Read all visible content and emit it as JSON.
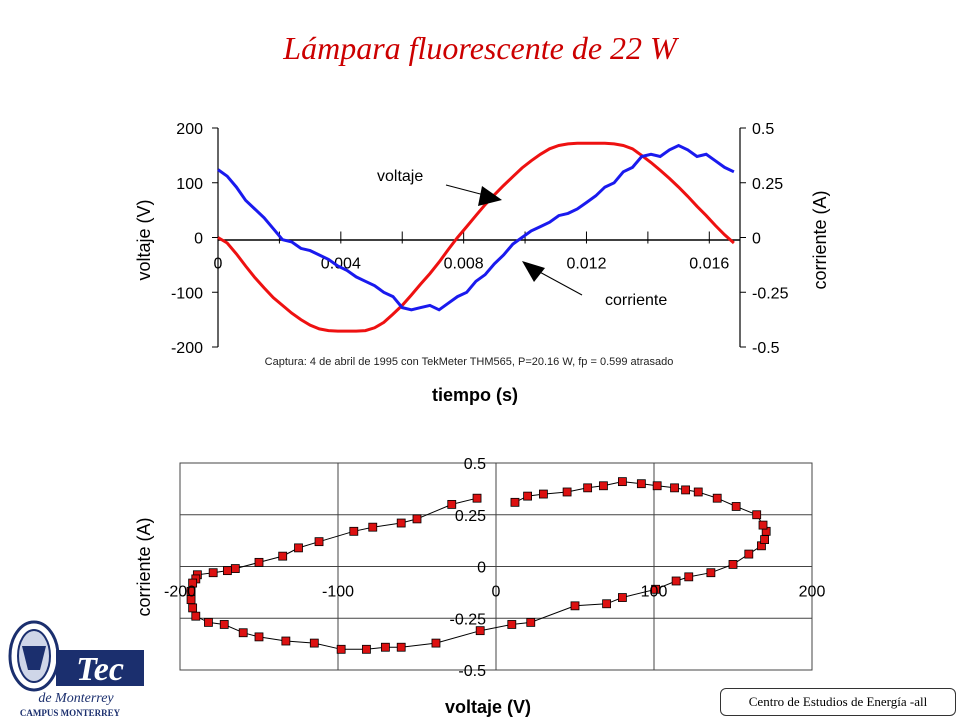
{
  "title": "Lámpara fluorescente de 22 W",
  "footer": "Centro de Estudios de Energía -all",
  "logo": {
    "icon": "tec-de-monterrey-logo",
    "text_main": "Tec",
    "text_sub": "de Monterrey",
    "text_campus": "CAMPUS MONTERREY"
  },
  "chart_data": [
    {
      "type": "line",
      "title": "",
      "caption": "Captura: 4 de abril de 1995 con TekMeter THM565, P=20.16 W, fp = 0.599 atrasado",
      "xlabel": "tiempo (s)",
      "ylabel_left": "voltaje (V)",
      "ylabel_right": "corriente (A)",
      "xlim": [
        0,
        0.017
      ],
      "ylim_left": [
        -200,
        200
      ],
      "ylim_right": [
        -0.5,
        0.5
      ],
      "x_ticks": [
        "0",
        "0.004",
        "0.008",
        "0.012",
        "0.016"
      ],
      "y_ticks_left": [
        "200",
        "100",
        "0",
        "-100",
        "-200"
      ],
      "y_ticks_right": [
        "0.5",
        "0.25",
        "0",
        "-0.25",
        "-0.5"
      ],
      "annotations": [
        "voltaje",
        "corriente"
      ],
      "series": [
        {
          "name": "voltaje",
          "axis": "left",
          "color": "#ee1111",
          "x": [
            0,
            0.0003,
            0.0006,
            0.0009,
            0.0012,
            0.0015,
            0.0018,
            0.0021,
            0.0024,
            0.0027,
            0.003,
            0.0033,
            0.0036,
            0.0039,
            0.0042,
            0.0045,
            0.0048,
            0.0051,
            0.0054,
            0.0057,
            0.006,
            0.0063,
            0.0066,
            0.0069,
            0.0072,
            0.0075,
            0.0078,
            0.0081,
            0.0084,
            0.0087,
            0.009,
            0.0093,
            0.0096,
            0.0099,
            0.0102,
            0.0105,
            0.0108,
            0.0111,
            0.0114,
            0.0117,
            0.012,
            0.0123,
            0.0126,
            0.0129,
            0.0132,
            0.0135,
            0.0138,
            0.0141,
            0.0144,
            0.0147,
            0.015,
            0.0153,
            0.0156,
            0.0159,
            0.0162,
            0.0165,
            0.0168
          ],
          "values": [
            0,
            -10,
            -30,
            -52,
            -73,
            -92,
            -110,
            -124,
            -138,
            -150,
            -160,
            -167,
            -170,
            -171,
            -171,
            -171,
            -170,
            -165,
            -155,
            -140,
            -124,
            -105,
            -85,
            -66,
            -45,
            -22,
            0,
            20,
            40,
            60,
            78,
            95,
            111,
            127,
            140,
            152,
            162,
            168,
            171,
            172,
            172,
            172,
            172,
            171,
            168,
            162,
            150,
            137,
            123,
            108,
            92,
            75,
            57,
            40,
            22,
            5,
            -10
          ]
        },
        {
          "name": "corriente",
          "axis": "right",
          "color": "#1a1aee",
          "x": [
            0,
            0.0003,
            0.0006,
            0.0009,
            0.0012,
            0.0015,
            0.0018,
            0.0021,
            0.0024,
            0.0027,
            0.003,
            0.0033,
            0.0036,
            0.0039,
            0.0042,
            0.0045,
            0.0048,
            0.0051,
            0.0054,
            0.0057,
            0.006,
            0.0063,
            0.0066,
            0.0069,
            0.0072,
            0.0075,
            0.0078,
            0.0081,
            0.0084,
            0.0087,
            0.009,
            0.0093,
            0.0096,
            0.0099,
            0.0102,
            0.0105,
            0.0108,
            0.0111,
            0.0114,
            0.0117,
            0.012,
            0.0123,
            0.0126,
            0.0129,
            0.0132,
            0.0135,
            0.0138,
            0.0141,
            0.0144,
            0.0147,
            0.015,
            0.0153,
            0.0156,
            0.0159,
            0.0162,
            0.0165,
            0.0168
          ],
          "values": [
            0.31,
            0.28,
            0.23,
            0.17,
            0.13,
            0.09,
            0.04,
            -0.01,
            -0.02,
            -0.05,
            -0.06,
            -0.08,
            -0.1,
            -0.13,
            -0.15,
            -0.18,
            -0.2,
            -0.22,
            -0.25,
            -0.27,
            -0.32,
            -0.33,
            -0.32,
            -0.31,
            -0.33,
            -0.3,
            -0.27,
            -0.25,
            -0.2,
            -0.17,
            -0.12,
            -0.08,
            -0.03,
            0.0,
            0.03,
            0.05,
            0.07,
            0.1,
            0.11,
            0.13,
            0.16,
            0.19,
            0.23,
            0.25,
            0.3,
            0.32,
            0.37,
            0.38,
            0.37,
            0.4,
            0.42,
            0.4,
            0.37,
            0.38,
            0.35,
            0.32,
            0.3
          ]
        }
      ]
    },
    {
      "type": "scatter",
      "title": "",
      "xlabel": "voltaje (V)",
      "ylabel": "corriente (A)",
      "xlim": [
        -200,
        200
      ],
      "ylim": [
        -0.5,
        0.5
      ],
      "x_ticks": [
        "-200",
        "-100",
        "0",
        "100",
        "200"
      ],
      "y_ticks": [
        "0.5",
        "0.25",
        "0",
        "-0.25",
        "-0.5"
      ],
      "grid": true,
      "marker_color": "#dd1111",
      "points": [
        [
          -12,
          0.33
        ],
        [
          -28,
          0.3
        ],
        [
          -50,
          0.23
        ],
        [
          -60,
          0.21
        ],
        [
          -78,
          0.19
        ],
        [
          -90,
          0.17
        ],
        [
          -112,
          0.12
        ],
        [
          -125,
          0.09
        ],
        [
          -135,
          0.05
        ],
        [
          -150,
          0.02
        ],
        [
          -165,
          -0.01
        ],
        [
          -170,
          -0.02
        ],
        [
          -179,
          -0.03
        ],
        [
          -189,
          -0.04
        ],
        [
          -190,
          -0.06
        ],
        [
          -192,
          -0.08
        ],
        [
          -193,
          -0.12
        ],
        [
          -193,
          -0.16
        ],
        [
          -192,
          -0.2
        ],
        [
          -190,
          -0.24
        ],
        [
          -182,
          -0.27
        ],
        [
          -172,
          -0.28
        ],
        [
          -160,
          -0.32
        ],
        [
          -150,
          -0.34
        ],
        [
          -133,
          -0.36
        ],
        [
          -115,
          -0.37
        ],
        [
          -98,
          -0.4
        ],
        [
          -82,
          -0.4
        ],
        [
          -70,
          -0.39
        ],
        [
          -60,
          -0.39
        ],
        [
          -38,
          -0.37
        ],
        [
          -10,
          -0.31
        ],
        [
          10,
          -0.28
        ],
        [
          22,
          -0.27
        ],
        [
          50,
          -0.19
        ],
        [
          70,
          -0.18
        ],
        [
          80,
          -0.15
        ],
        [
          101,
          -0.11
        ],
        [
          114,
          -0.07
        ],
        [
          122,
          -0.05
        ],
        [
          136,
          -0.03
        ],
        [
          150,
          0.01
        ],
        [
          160,
          0.06
        ],
        [
          168,
          0.1
        ],
        [
          170,
          0.13
        ],
        [
          171,
          0.17
        ],
        [
          169,
          0.2
        ],
        [
          165,
          0.25
        ],
        [
          152,
          0.29
        ],
        [
          140,
          0.33
        ],
        [
          128,
          0.36
        ],
        [
          120,
          0.37
        ],
        [
          113,
          0.38
        ],
        [
          102,
          0.39
        ],
        [
          92,
          0.4
        ],
        [
          80,
          0.41
        ],
        [
          68,
          0.39
        ],
        [
          58,
          0.38
        ],
        [
          45,
          0.36
        ],
        [
          30,
          0.35
        ],
        [
          20,
          0.34
        ],
        [
          12,
          0.31
        ]
      ]
    }
  ]
}
